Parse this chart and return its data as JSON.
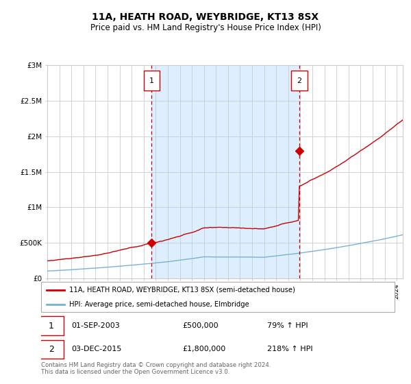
{
  "title": "11A, HEATH ROAD, WEYBRIDGE, KT13 8SX",
  "subtitle": "Price paid vs. HM Land Registry's House Price Index (HPI)",
  "title_fontsize": 10,
  "subtitle_fontsize": 8.5,
  "ylim": [
    0,
    3000000
  ],
  "yticks": [
    0,
    500000,
    1000000,
    1500000,
    2000000,
    2500000,
    3000000
  ],
  "ytick_labels": [
    "£0",
    "£500K",
    "£1M",
    "£1.5M",
    "£2M",
    "£2.5M",
    "£3M"
  ],
  "xlim_start": 1995,
  "xlim_end": 2024.5,
  "purchase1_date": 2003.667,
  "purchase1_price": 500000,
  "purchase1_label": "01-SEP-2003",
  "purchase1_hpi_pct": "79%",
  "purchase2_date": 2015.917,
  "purchase2_price": 1800000,
  "purchase2_label": "03-DEC-2015",
  "purchase2_hpi_pct": "218%",
  "house_color": "#cc0000",
  "hpi_color": "#7ab0d4",
  "bg_shade_color": "#ddeeff",
  "vline_color": "#cc0000",
  "grid_color": "#cccccc",
  "legend_house": "11A, HEATH ROAD, WEYBRIDGE, KT13 8SX (semi-detached house)",
  "legend_hpi": "HPI: Average price, semi-detached house, Elmbridge",
  "footnote": "Contains HM Land Registry data © Crown copyright and database right 2024.\nThis data is licensed under the Open Government Licence v3.0."
}
